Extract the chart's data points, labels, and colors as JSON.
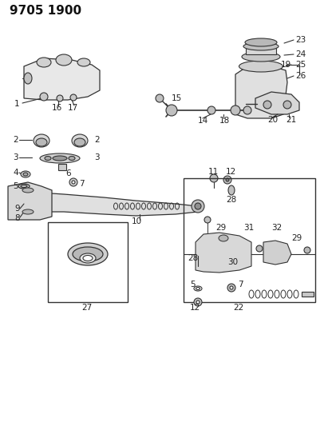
{
  "title": "9705 1900",
  "bg_color": "#ffffff",
  "line_color": "#333333",
  "label_color": "#222222",
  "title_fontsize": 11,
  "label_fontsize": 7.5,
  "fig_width": 4.11,
  "fig_height": 5.33,
  "dpi": 100
}
